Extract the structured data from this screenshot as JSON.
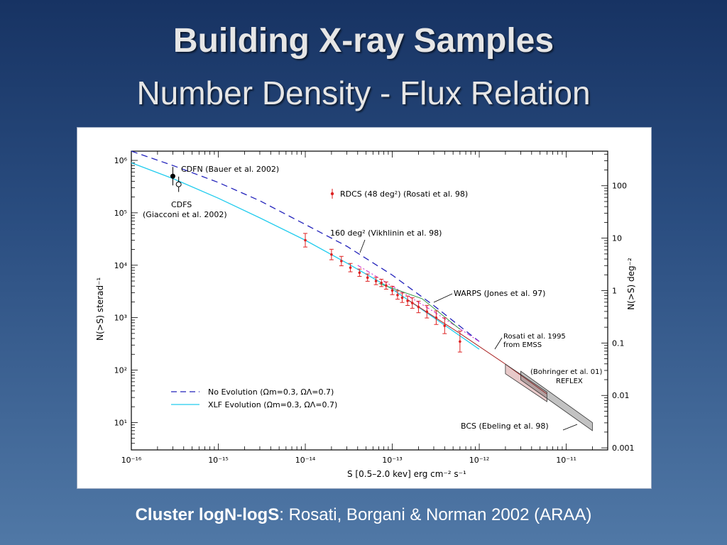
{
  "slide": {
    "title": "Building X-ray Samples",
    "subtitle": "Number Density - Flux Relation",
    "caption_bold": "Cluster logN-logS",
    "caption_rest": ":  Rosati, Borgani & Norman 2002 (ARAA)"
  },
  "chart_data": {
    "type": "line",
    "xlabel": "S [0.5–2.0 kev] erg cm⁻² s⁻¹",
    "ylabel": "N(>S) sterad⁻¹",
    "ylabel_right": "N(>S) deg⁻²",
    "xscale": "log",
    "yscale": "log",
    "xlim": [
      1e-16,
      3e-11
    ],
    "ylim": [
      3,
      1500000.0
    ],
    "x_ticks": [
      "10⁻¹⁶",
      "10⁻¹⁵",
      "10⁻¹⁴",
      "10⁻¹³",
      "10⁻¹²",
      "10⁻¹¹"
    ],
    "y_ticks": [
      "10¹",
      "10²",
      "10³",
      "10⁴",
      "10⁵",
      "10⁶"
    ],
    "y_right_ticks": [
      "0.001",
      "0.01",
      "0.1",
      "1",
      "10",
      "100"
    ],
    "legend": [
      {
        "label": "No Evolution (Ωm=0.3, ΩΛ=0.7)",
        "color": "#2222bb",
        "style": "dashed"
      },
      {
        "label": "XLF Evolution (Ωm=0.3, ΩΛ=0.7)",
        "color": "#22ccee",
        "style": "solid"
      }
    ],
    "series": [
      {
        "name": "No Evolution (Ωm=0.3, ΩΛ=0.7)",
        "color": "#2222bb",
        "dash": true,
        "x": [
          1e-16,
          3e-16,
          1e-15,
          3e-15,
          1e-14,
          3e-14,
          1e-13,
          3e-13,
          1e-12
        ],
        "y": [
          1500000.0,
          800000.0,
          380000.0,
          170000.0,
          60000.0,
          23000.0,
          6500.0,
          1700.0,
          350
        ]
      },
      {
        "name": "XLF Evolution (Ωm=0.3, ΩΛ=0.7)",
        "color": "#22ccee",
        "dash": false,
        "x": [
          1e-16,
          3e-16,
          1e-15,
          3e-15,
          1e-14,
          3e-14,
          1e-13,
          3e-13,
          1e-12
        ],
        "y": [
          900000.0,
          450000.0,
          190000.0,
          80000.0,
          30000.0,
          11000.0,
          3500.0,
          1000.0,
          250
        ]
      }
    ],
    "rdcs_points": {
      "x": [
        1e-14,
        2e-14,
        2.6e-14,
        3.3e-14,
        4.2e-14,
        5.2e-14,
        6.5e-14,
        7.5e-14,
        8.5e-14,
        1e-13,
        1.15e-13,
        1.3e-13,
        1.5e-13,
        1.7e-13,
        2e-13,
        2.5e-13,
        3.2e-13,
        4e-13,
        6e-13
      ],
      "y": [
        30000.0,
        16000.0,
        12000.0,
        9000.0,
        7200.0,
        5800.0,
        5000.0,
        4600.0,
        4100.0,
        3300.0,
        2700.0,
        2400.0,
        2100.0,
        1900.0,
        1600.0,
        1300.0,
        1000.0,
        700,
        350
      ],
      "err": [
        0.13,
        0.1,
        0.09,
        0.08,
        0.07,
        0.07,
        0.07,
        0.07,
        0.07,
        0.08,
        0.08,
        0.09,
        0.09,
        0.1,
        0.11,
        0.12,
        0.13,
        0.15,
        0.2
      ]
    },
    "cdfn_point": {
      "x": 3e-16,
      "y": 500000.0
    },
    "cdfs_point": {
      "x": 3.5e-16,
      "y": 350000.0
    },
    "vikhlinin_line": {
      "x": [
        4e-14,
        1e-13,
        3e-13,
        1e-12
      ],
      "y": [
        10000.0,
        4000.0,
        1300.0,
        350
      ]
    },
    "warps_line": {
      "x": [
        7e-14,
        2.2e-13,
        6e-13
      ],
      "y": [
        4500.0,
        2300.0,
        600
      ]
    },
    "emss_line": {
      "x": [
        1.5e-13,
        6e-13,
        2e-12,
        6e-12
      ],
      "y": [
        2200.0,
        500,
        130,
        35
      ]
    },
    "reflex_band": {
      "x": [
        3e-12,
        2e-11
      ],
      "y_low": [
        65,
        7
      ],
      "y_high": [
        95,
        10
      ]
    },
    "bcs_band": {
      "x": [
        2e-12,
        6e-12
      ],
      "y_low": [
        85,
        25
      ],
      "y_high": [
        130,
        38
      ]
    },
    "annotations": {
      "cdfn": "CDFN  (Bauer et al. 2002)",
      "cdfs": "CDFS",
      "cdfs_ref": "(Giacconi et al. 2002)",
      "rdcs": "RDCS (48 deg²) (Rosati et al. 98)",
      "vikhlinin": "160 deg² (Vikhlinin et al. 98)",
      "warps": "WARPS (Jones et al. 97)",
      "rosati95_a": "Rosati et al. 1995",
      "rosati95_b": "from EMSS",
      "bohringer": "(Bohringer et al. 01)",
      "reflex": "REFLEX",
      "bcs": "BCS (Ebeling et al. 98)"
    }
  }
}
